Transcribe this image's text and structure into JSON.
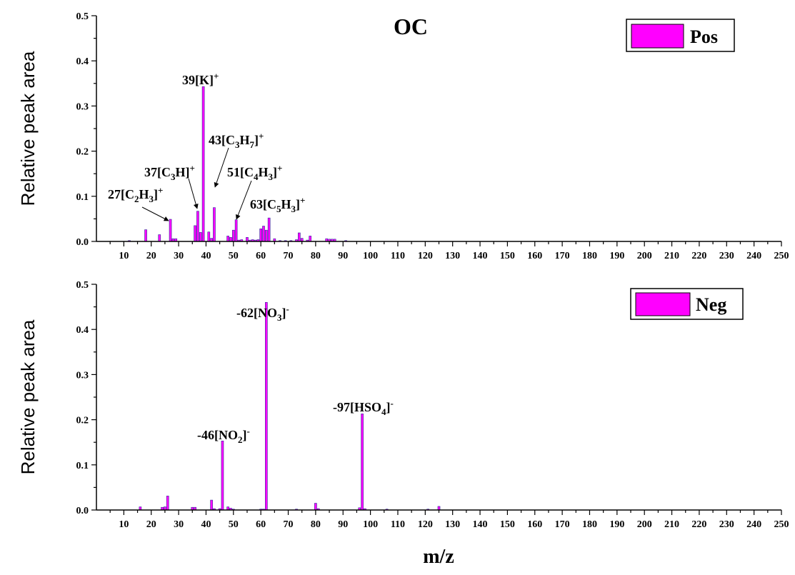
{
  "chart_data": [
    {
      "type": "bar",
      "title": "OC",
      "ylabel": "Relative peak area",
      "xlabel": "",
      "xlim": [
        0,
        250
      ],
      "ylim": [
        0,
        0.5
      ],
      "xticks": [
        10,
        20,
        30,
        40,
        50,
        60,
        70,
        80,
        90,
        100,
        110,
        120,
        130,
        140,
        150,
        160,
        170,
        180,
        190,
        200,
        210,
        220,
        230,
        240,
        250
      ],
      "yticks": [
        "0.0",
        "0.1",
        "0.2",
        "0.3",
        "0.4",
        "0.5"
      ],
      "bar_color": "#ff00ff",
      "edge_color": "#333399",
      "legend": {
        "label": "Pos",
        "placement": "top-right"
      },
      "series": [
        {
          "name": "Pos",
          "x": [
            12,
            18,
            23,
            27,
            28,
            29,
            36,
            37,
            38,
            39,
            41,
            42,
            43,
            48,
            49,
            50,
            51,
            52,
            53,
            55,
            56,
            57,
            58,
            59,
            60,
            61,
            62,
            63,
            65,
            67,
            69,
            71,
            73,
            74,
            75,
            77,
            78,
            84,
            85,
            86,
            87,
            91
          ],
          "values": [
            0.002,
            0.026,
            0.015,
            0.049,
            0.006,
            0.006,
            0.035,
            0.067,
            0.02,
            0.343,
            0.021,
            0.007,
            0.075,
            0.012,
            0.009,
            0.025,
            0.048,
            0.003,
            0.004,
            0.009,
            0.003,
            0.004,
            0.003,
            0.004,
            0.028,
            0.034,
            0.025,
            0.052,
            0.006,
            0.002,
            0.002,
            0.002,
            0.004,
            0.019,
            0.007,
            0.003,
            0.012,
            0.006,
            0.005,
            0.005,
            0.005,
            0.002
          ]
        }
      ],
      "annotations": [
        {
          "label": "27[C2H3]+",
          "x": 27,
          "y": 0.049
        },
        {
          "label": "37[C3H]+",
          "x": 37,
          "y": 0.067
        },
        {
          "label": "39[K]+",
          "x": 39,
          "y": 0.343
        },
        {
          "label": "43[C3H7]+",
          "x": 43,
          "y": 0.075
        },
        {
          "label": "51[C4H3]+",
          "x": 51,
          "y": 0.048
        },
        {
          "label": "63[C5H3]+",
          "x": 63,
          "y": 0.052
        }
      ]
    },
    {
      "type": "bar",
      "title": "",
      "ylabel": "Relative peak area",
      "xlabel": "m/z",
      "xlim": [
        0,
        250
      ],
      "ylim": [
        0,
        0.5
      ],
      "xticks": [
        10,
        20,
        30,
        40,
        50,
        60,
        70,
        80,
        90,
        100,
        110,
        120,
        130,
        140,
        150,
        160,
        170,
        180,
        190,
        200,
        210,
        220,
        230,
        240,
        250
      ],
      "yticks": [
        "0.0",
        "0.1",
        "0.2",
        "0.3",
        "0.4",
        "0.5"
      ],
      "bar_color": "#ff00ff",
      "edge_color": "#333399",
      "legend": {
        "label": "Neg",
        "placement": "top-right"
      },
      "series": [
        {
          "name": "Neg",
          "x": [
            16,
            24,
            25,
            26,
            35,
            36,
            42,
            43,
            45,
            46,
            48,
            49,
            50,
            60,
            61,
            62,
            73,
            80,
            81,
            96,
            97,
            98,
            106,
            121,
            125
          ],
          "values": [
            0.007,
            0.006,
            0.007,
            0.031,
            0.006,
            0.006,
            0.022,
            0.003,
            0.003,
            0.153,
            0.007,
            0.004,
            0.002,
            0.002,
            0.002,
            0.46,
            0.002,
            0.015,
            0.003,
            0.005,
            0.213,
            0.003,
            0.002,
            0.002,
            0.008
          ]
        }
      ],
      "annotations": [
        {
          "label": "-46[NO2]-",
          "x": 46,
          "y": 0.153
        },
        {
          "label": "-62[NO3]-",
          "x": 62,
          "y": 0.46
        },
        {
          "label": "-97[HSO4]-",
          "x": 97,
          "y": 0.213
        }
      ]
    }
  ]
}
